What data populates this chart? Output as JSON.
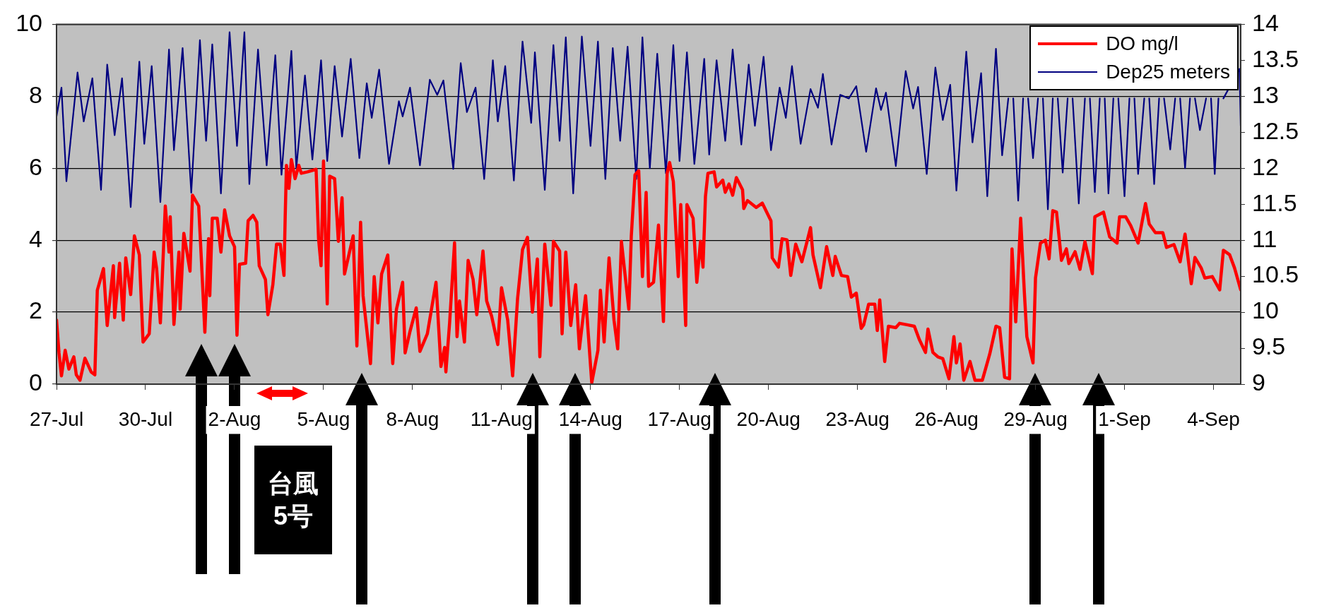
{
  "chart_data": {
    "type": "line",
    "xlim": [
      "--07-27",
      "--09-04T22:00"
    ],
    "xticks": [
      {
        "value": "--07-27",
        "label": "27-Jul"
      },
      {
        "value": "--07-30",
        "label": "30-Jul"
      },
      {
        "value": "--08-02",
        "label": "2-Aug"
      },
      {
        "value": "--08-05",
        "label": "5-Aug"
      },
      {
        "value": "--08-08",
        "label": "8-Aug"
      },
      {
        "value": "--08-11",
        "label": "11-Aug"
      },
      {
        "value": "--08-14",
        "label": "14-Aug"
      },
      {
        "value": "--08-17",
        "label": "17-Aug"
      },
      {
        "value": "--08-20",
        "label": "20-Aug"
      },
      {
        "value": "--08-23",
        "label": "23-Aug"
      },
      {
        "value": "--08-26",
        "label": "26-Aug"
      },
      {
        "value": "--08-29",
        "label": "29-Aug"
      },
      {
        "value": "--09-01",
        "label": "1-Sep"
      },
      {
        "value": "--09-04",
        "label": "4-Sep"
      }
    ],
    "ylim": [
      0,
      10
    ],
    "yticks": [
      0,
      2,
      4,
      6,
      8,
      10
    ],
    "y2lim": [
      9,
      14
    ],
    "y2ticks": [
      9,
      9.5,
      10,
      10.5,
      11,
      11.5,
      12,
      12.5,
      13,
      13.5,
      14
    ],
    "grid": "y",
    "legend": "top right",
    "annotations": [
      "台風5号"
    ],
    "series": [
      {
        "name": "DO mg/l",
        "color": "#ff0000",
        "x": [
          "--07-27T00:00",
          "--07-27T02:00",
          "--07-27T04:00",
          "--07-27T07:00",
          "--07-27T10:00",
          "--07-27T14:00",
          "--07-27T16:00",
          "--07-27T19:00",
          "--07-27T23:00",
          "--07-28T04:00",
          "--07-28T07:00",
          "--07-28T09:00",
          "--07-28T14:00",
          "--07-28T17:00",
          "--07-28T22:00",
          "--07-28T23:00",
          "--07-29T03:00",
          "--07-29T06:00",
          "--07-29T08:00",
          "--07-29T12:00",
          "--07-29T15:00",
          "--07-29T19:00",
          "--07-29T22:00",
          "--07-30T03:00",
          "--07-30T07:00",
          "--07-30T09:00",
          "--07-30T12:00",
          "--07-30T16:00",
          "--07-30T19:00",
          "--07-30T20:00",
          "--07-30T23:00",
          "--07-31T03:00",
          "--07-31T04:00",
          "--07-31T07:00",
          "--07-31T12:00",
          "--07-31T14:00",
          "--07-31T19:00",
          "--07-31T21:00",
          "--08-01T00:00",
          "--08-01T03:00",
          "--08-01T04:00",
          "--08-01T06:00",
          "--08-01T10:00",
          "--08-01T13:00",
          "--08-01T16:00",
          "--08-01T20:00",
          "--08-02T00:00",
          "--08-02T02:00",
          "--08-02T04:00",
          "--08-02T09:00",
          "--08-02T11:00",
          "--08-02T15:00",
          "--08-02T18:00",
          "--08-02T20:00",
          "--08-03T01:00",
          "--08-03T03:00",
          "--08-03T07:00",
          "--08-03T10:00",
          "--08-03T13:00",
          "--08-03T16:00",
          "--08-03T17:00",
          "--08-03T18:00",
          "--08-03T20:00",
          "--08-03T22:00",
          "--08-04T01:00",
          "--08-04T04:00",
          "--08-04T06:00",
          "--08-04T11:00",
          "--08-04T18:00",
          "--08-04T20:00",
          "--08-04T22:00",
          "--08-05T00:00",
          "--08-05T03:00",
          "--08-05T05:00",
          "--08-05T09:00",
          "--08-05T12:00",
          "--08-05T15:00",
          "--08-05T17:00",
          "--08-06T00:00",
          "--08-06T03:00",
          "--08-06T06:00",
          "--08-06T08:00",
          "--08-06T14:00",
          "--08-06T17:00",
          "--08-06T20:00",
          "--08-06T23:00",
          "--08-07T04:00",
          "--08-07T08:00",
          "--08-07T11:00",
          "--08-07T16:00",
          "--08-07T18:00",
          "--08-07T22:00",
          "--08-08T03:00",
          "--08-08T06:00",
          "--08-08T12:00",
          "--08-08T19:00",
          "--08-08T23:00",
          "--08-09T02:00",
          "--08-09T03:00",
          "--08-09T06:00",
          "--08-09T10:00",
          "--08-09T12:00",
          "--08-09T14:00",
          "--08-09T18:00",
          "--08-09T21:00",
          "--08-10T01:00",
          "--08-10T04:00",
          "--08-10T09:00",
          "--08-10T12:00",
          "--08-10T16:00",
          "--08-10T21:00",
          "--08-11T00:00",
          "--08-11T05:00",
          "--08-11T09:00",
          "--08-11T13:00",
          "--08-11T17:00",
          "--08-11T21:00",
          "--08-12T01:00",
          "--08-12T05:00",
          "--08-12T07:00",
          "--08-12T11:00",
          "--08-12T16:00",
          "--08-12T18:00",
          "--08-12T23:00",
          "--08-13T01:00",
          "--08-13T04:00",
          "--08-13T08:00",
          "--08-13T12:00",
          "--08-13T15:00",
          "--08-13T20:00",
          "--08-14T01:00",
          "--08-14T06:00",
          "--08-14T08:00",
          "--08-14T11:00",
          "--08-14T15:00",
          "--08-14T19:00",
          "--08-14T22:00",
          "--08-15T01:00",
          "--08-15T07:00",
          "--08-15T09:00",
          "--08-15T12:00",
          "--08-15T15:00",
          "--08-15T18:00",
          "--08-15T21:00",
          "--08-15T23:00",
          "--08-16T03:00",
          "--08-16T07:00",
          "--08-16T11:00",
          "--08-16T14:00",
          "--08-16T16:00",
          "--08-16T19:00",
          "--08-16T23:00",
          "--08-17T01:00",
          "--08-17T05:00",
          "--08-17T06:00",
          "--08-17T11:00",
          "--08-17T14:00",
          "--08-17T17:00",
          "--08-17T19:00",
          "--08-17T21:00",
          "--08-17T23:00",
          "--08-18T04:00",
          "--08-18T06:00",
          "--08-18T11:00",
          "--08-18T13:00",
          "--08-18T16:00",
          "--08-18T19:00",
          "--08-18T22:00",
          "--08-19T03:00",
          "--08-19T04:00",
          "--08-19T07:00",
          "--08-19T14:00",
          "--08-19T19:00",
          "--08-20T02:00",
          "--08-20T03:00",
          "--08-20T08:00",
          "--08-20T11:00",
          "--08-20T15:00",
          "--08-20T18:00",
          "--08-20T22:00",
          "--08-21T03:00",
          "--08-21T10:00",
          "--08-21T12:00",
          "--08-21T18:00",
          "--08-21T23:00",
          "--08-22T04:00",
          "--08-22T06:00",
          "--08-22T11:00",
          "--08-22T16:00",
          "--08-22T19:00",
          "--08-22T23:00",
          "--08-23T03:00",
          "--08-23T05:00",
          "--08-23T09:00",
          "--08-23T14:00",
          "--08-23T16:00",
          "--08-23T18:00",
          "--08-23T22:00",
          "--08-24T01:00",
          "--08-24T07:00",
          "--08-24T10:00",
          "--08-24T16:00",
          "--08-24T22:00",
          "--08-25T02:00",
          "--08-25T07:00",
          "--08-25T09:00",
          "--08-25T13:00",
          "--08-25T17:00",
          "--08-25T21:00",
          "--08-26T02:00",
          "--08-26T06:00",
          "--08-26T08:00",
          "--08-26T11:00",
          "--08-26T14:00",
          "--08-26T19:00",
          "--08-26T23:00",
          "--08-27T05:00",
          "--08-27T11:00",
          "--08-27T16:00",
          "--08-27T19:00",
          "--08-27T23:00",
          "--08-28T03:00",
          "--08-28T05:00",
          "--08-28T08:00",
          "--08-28T12:00",
          "--08-28T15:00",
          "--08-28T17:00",
          "--08-28T22:00",
          "--08-29T00:00",
          "--08-29T04:00",
          "--08-29T08:00",
          "--08-29T11:00",
          "--08-29T14:00",
          "--08-29T17:00",
          "--08-29T21:00",
          "--08-30T01:00",
          "--08-30T03:00",
          "--08-30T08:00",
          "--08-30T12:00",
          "--08-30T16:00",
          "--08-30T22:00",
          "--08-31T00:00",
          "--08-31T07:00",
          "--08-31T12:00",
          "--08-31T18:00",
          "--08-31T20:00",
          "--09-01T01:00",
          "--09-01T05:00",
          "--09-01T11:00",
          "--09-01T17:00",
          "--09-01T20:00",
          "--09-02T01:00",
          "--09-02T07:00",
          "--09-02T10:00",
          "--09-02T16:00",
          "--09-02T21:00",
          "--09-03T01:00",
          "--09-03T06:00",
          "--09-03T09:00",
          "--09-03T14:00",
          "--09-03T17:00",
          "--09-03T23:00",
          "--09-04T05:00",
          "--09-04T08:00",
          "--09-04T13:00",
          "--09-04T17:00",
          "--09-04T22:00"
        ],
        "values": [
          1.78,
          0.87,
          0.23,
          0.94,
          0.42,
          0.76,
          0.26,
          0.11,
          0.72,
          0.34,
          0.26,
          2.61,
          3.21,
          1.63,
          3.29,
          1.85,
          3.36,
          1.78,
          3.51,
          2.49,
          4.12,
          3.59,
          1.17,
          1.4,
          3.67,
          3.21,
          1.7,
          4.95,
          3.67,
          4.65,
          1.66,
          3.67,
          2.08,
          4.19,
          3.14,
          5.25,
          4.95,
          3.59,
          1.44,
          4.04,
          2.46,
          4.61,
          4.61,
          3.67,
          4.84,
          4.12,
          3.82,
          1.36,
          3.33,
          3.36,
          4.54,
          4.69,
          4.5,
          3.29,
          2.91,
          1.93,
          2.76,
          3.89,
          3.89,
          3.02,
          4.65,
          6.08,
          5.44,
          6.24,
          5.71,
          6.08,
          5.86,
          5.9,
          5.97,
          4.04,
          3.29,
          6.2,
          2.23,
          5.78,
          5.71,
          3.97,
          5.18,
          3.06,
          4.12,
          1.06,
          4.5,
          2.46,
          0.57,
          2.99,
          1.7,
          3.06,
          3.59,
          0.57,
          2.08,
          2.83,
          0.87,
          1.47,
          2.12,
          0.91,
          1.4,
          2.83,
          0.49,
          1.02,
          0.34,
          1.7,
          3.93,
          1.32,
          2.31,
          1.17,
          3.44,
          2.91,
          1.93,
          3.7,
          2.31,
          1.89,
          1.1,
          2.68,
          1.78,
          0.23,
          2.38,
          3.74,
          4.08,
          2.0,
          3.48,
          0.76,
          3.89,
          2.19,
          3.97,
          3.7,
          1.4,
          3.67,
          1.63,
          2.76,
          0.98,
          2.46,
          0.04,
          0.94,
          2.61,
          1.17,
          3.51,
          1.78,
          0.98,
          3.97,
          2.08,
          4.12,
          5.82,
          5.93,
          2.99,
          5.33,
          2.72,
          2.83,
          4.42,
          1.74,
          5.86,
          6.16,
          5.63,
          2.99,
          4.99,
          1.63,
          4.99,
          4.61,
          2.83,
          3.97,
          3.25,
          5.22,
          5.86,
          5.9,
          5.48,
          5.67,
          5.33,
          5.56,
          5.25,
          5.74,
          5.4,
          4.88,
          5.1,
          4.91,
          5.03,
          4.54,
          3.51,
          3.25,
          4.04,
          4.01,
          3.02,
          3.89,
          3.4,
          4.35,
          3.59,
          2.68,
          3.82,
          3.02,
          3.55,
          3.02,
          2.99,
          2.42,
          2.53,
          1.55,
          1.65,
          2.22,
          2.22,
          1.49,
          2.34,
          0.63,
          1.61,
          1.57,
          1.69,
          1.65,
          1.61,
          1.24,
          0.88,
          1.53,
          0.88,
          0.76,
          0.71,
          0.15,
          1.32,
          0.59,
          1.12,
          0.11,
          0.63,
          0.11,
          0.11,
          0.84,
          1.61,
          1.57,
          0.19,
          0.15,
          3.76,
          1.73,
          4.61,
          2.54,
          1.32,
          0.59,
          2.95,
          3.92,
          4.0,
          3.48,
          4.82,
          4.78,
          3.44,
          3.76,
          3.35,
          3.68,
          3.19,
          3.96,
          3.07,
          4.65,
          4.78,
          4.09,
          3.92,
          4.65,
          4.65,
          4.41,
          3.92,
          5.02,
          4.45,
          4.21,
          4.21,
          3.8,
          3.88,
          3.4,
          4.17,
          2.79,
          3.52,
          3.23,
          2.95,
          2.99,
          2.62,
          3.72,
          3.6,
          3.23,
          2.62
        ]
      },
      {
        "name": "Dep25 meters",
        "color": "#000080",
        "axis": "y2",
        "x": [
          "--07-27T00:00",
          "--07-27T04:00",
          "--07-27T08:00",
          "--07-27T17:00",
          "--07-27T22:00",
          "--07-28T05:00",
          "--07-28T12:00",
          "--07-28T17:00",
          "--07-28T23:00",
          "--07-29T05:00",
          "--07-29T12:00",
          "--07-29T19:00",
          "--07-29T23:00",
          "--07-30T05:00",
          "--07-30T12:00",
          "--07-30T19:00",
          "--07-30T23:00",
          "--07-31T06:00",
          "--07-31T13:00",
          "--07-31T20:00",
          "--08-01T01:00",
          "--08-01T06:00",
          "--08-01T13:00",
          "--08-01T20:00",
          "--08-02T02:00",
          "--08-02T08:00",
          "--08-02T12:00",
          "--08-02T19:00",
          "--08-03T02:00",
          "--08-03T09:00",
          "--08-03T14:00",
          "--08-03T22:00",
          "--08-04T02:00",
          "--08-04T09:00",
          "--08-04T15:00",
          "--08-04T22:00",
          "--08-05T03:00",
          "--08-05T09:00",
          "--08-05T15:00",
          "--08-05T22:00",
          "--08-06T05:00",
          "--08-06T11:00",
          "--08-06T15:00",
          "--08-06T21:00",
          "--08-07T05:00",
          "--08-07T13:00",
          "--08-07T16:00",
          "--08-07T22:00",
          "--08-08T06:00",
          "--08-08T14:00",
          "--08-08T20:00",
          "--08-09T01:00",
          "--08-09T09:00",
          "--08-09T15:00",
          "--08-09T20:00",
          "--08-10T03:00",
          "--08-10T10:00",
          "--08-10T17:00",
          "--08-10T21:00",
          "--08-11T03:00",
          "--08-11T10:00",
          "--08-11T17:00",
          "--08-12T00:00",
          "--08-12T03:00",
          "--08-12T11:00",
          "--08-12T18:00",
          "--08-12T23:00",
          "--08-13T04:00",
          "--08-13T10:00",
          "--08-13T17:00",
          "--08-14T00:00",
          "--08-14T06:00",
          "--08-14T12:00",
          "--08-14T18:00",
          "--08-15T00:00",
          "--08-15T06:00",
          "--08-15T13:00",
          "--08-15T18:00",
          "--08-16T00:00",
          "--08-16T06:00",
          "--08-16T13:00",
          "--08-16T19:00",
          "--08-17T00:00",
          "--08-17T06:00",
          "--08-17T12:00",
          "--08-17T20:00",
          "--08-18T00:00",
          "--08-18T06:00",
          "--08-18T13:00",
          "--08-18T19:00",
          "--08-19T02:00",
          "--08-19T08:00",
          "--08-19T13:00",
          "--08-19T20:00",
          "--08-20T02:00",
          "--08-20T09:00",
          "--08-20T14:00",
          "--08-20T19:00",
          "--08-21T02:00",
          "--08-21T10:00",
          "--08-21T16:00",
          "--08-21T20:00",
          "--08-22T03:00",
          "--08-22T10:00",
          "--08-22T17:00",
          "--08-22T23:00",
          "--08-23T07:00",
          "--08-23T15:00",
          "--08-23T19:00",
          "--08-23T23:00",
          "--08-24T07:00",
          "--08-24T15:00",
          "--08-24T21:00",
          "--08-25T01:00",
          "--08-25T08:00",
          "--08-25T15:00",
          "--08-25T21:00",
          "--08-26T03:00",
          "--08-26T08:00",
          "--08-26T16:00",
          "--08-26T21:00",
          "--08-27T04:00",
          "--08-27T09:00",
          "--08-27T16:00",
          "--08-27T21:00",
          "--08-28T02:00",
          "--08-28T04:00",
          "--08-28T06:00",
          "--08-28T10:00",
          "--08-28T14:00",
          "--08-28T16:00",
          "--08-28T18:00",
          "--08-28T22:00",
          "--08-29T02:00",
          "--08-29T04:00",
          "--08-29T06:00",
          "--08-29T10:00",
          "--08-29T14:00",
          "--08-29T16:00",
          "--08-29T18:00",
          "--08-29T22:00",
          "--08-30T02:00",
          "--08-30T04:00",
          "--08-30T06:00",
          "--08-30T11:00",
          "--08-30T16:00",
          "--08-30T18:00",
          "--08-30T20:00",
          "--08-31T00:00",
          "--08-31T04:00",
          "--08-31T06:00",
          "--08-31T08:00",
          "--08-31T11:00",
          "--08-31T15:00",
          "--08-31T17:00",
          "--08-31T19:00",
          "--09-01T00:00",
          "--09-01T04:00",
          "--09-01T06:00",
          "--09-01T08:00",
          "--09-01T11:00",
          "--09-01T16:00",
          "--09-01T18:00",
          "--09-01T20:00",
          "--09-02T00:00",
          "--09-02T04:00",
          "--09-02T06:00",
          "--09-02T08:00",
          "--09-02T13:00",
          "--09-02T17:00",
          "--09-02T19:00",
          "--09-02T21:00",
          "--09-03T01:00",
          "--09-03T05:00",
          "--09-03T07:00",
          "--09-03T09:00",
          "--09-03T13:00",
          "--09-03T18:00",
          "--09-03T20:00",
          "--09-03T22:00",
          "--09-04T01:00",
          "--09-04T04:00",
          "--09-04T06:00",
          "--09-04T08:00",
          "--09-04T21:00",
          "--09-04T22:00"
        ],
        "values": [
          12.72,
          13.12,
          11.82,
          13.33,
          12.65,
          13.25,
          11.7,
          13.44,
          12.46,
          13.25,
          11.46,
          13.48,
          12.34,
          13.42,
          11.53,
          13.65,
          12.25,
          13.67,
          11.66,
          13.78,
          12.38,
          13.72,
          11.65,
          13.89,
          12.31,
          13.89,
          11.78,
          13.65,
          12.04,
          13.57,
          11.91,
          13.63,
          12.0,
          13.29,
          12.12,
          13.5,
          12.1,
          13.42,
          12.44,
          13.52,
          12.14,
          13.18,
          12.7,
          13.37,
          12.06,
          12.93,
          12.72,
          13.12,
          12.04,
          13.23,
          13.02,
          13.22,
          11.99,
          13.46,
          12.78,
          13.12,
          11.85,
          13.5,
          12.65,
          13.42,
          11.83,
          13.76,
          12.63,
          13.61,
          11.7,
          13.71,
          12.38,
          13.82,
          11.65,
          13.83,
          12.31,
          13.76,
          11.85,
          13.67,
          12.38,
          13.69,
          11.85,
          13.82,
          12.0,
          13.59,
          11.93,
          13.71,
          12.1,
          13.61,
          12.06,
          13.52,
          12.19,
          13.5,
          12.38,
          13.65,
          12.33,
          13.44,
          12.59,
          13.55,
          12.25,
          13.12,
          12.7,
          13.42,
          12.34,
          13.1,
          12.84,
          13.31,
          12.33,
          13.02,
          12.97,
          13.14,
          12.23,
          13.11,
          12.81,
          13.05,
          12.03,
          13.35,
          12.83,
          13.13,
          11.92,
          13.4,
          12.67,
          13.16,
          11.69,
          13.62,
          12.36,
          13.32,
          11.61,
          13.66,
          12.18,
          12.97,
          null,
          12.97,
          11.55,
          12.97,
          null,
          12.97,
          12.14,
          12.97,
          null,
          12.97,
          11.43,
          12.97,
          null,
          12.97,
          11.94,
          12.97,
          null,
          12.97,
          11.51,
          12.97,
          null,
          12.97,
          11.67,
          12.97,
          null,
          12.97,
          11.65,
          12.97,
          null,
          12.97,
          11.61,
          12.97,
          null,
          12.97,
          11.92,
          12.97,
          null,
          12.97,
          11.78,
          12.97,
          null,
          12.97,
          12.26,
          12.97,
          null,
          12.97,
          12.0,
          12.97,
          null,
          12.97,
          12.53,
          12.97,
          null,
          12.97,
          11.92,
          12.97,
          null,
          12.97,
          13.38,
          12.59
        ]
      }
    ]
  }
}
